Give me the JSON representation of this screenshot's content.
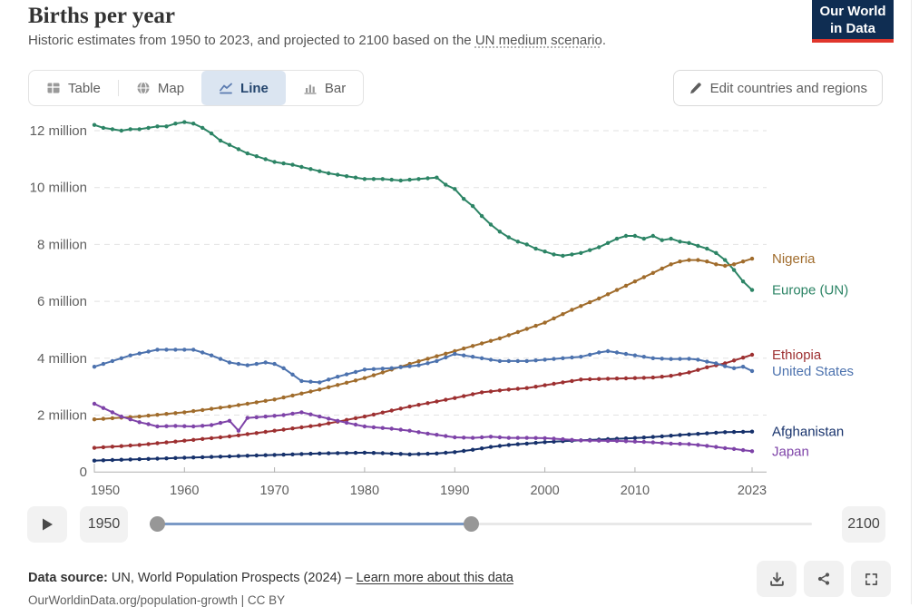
{
  "header": {
    "title": "Births per year",
    "subtitle_prefix": "Historic estimates from 1950 to 2023, and projected to 2100 based on the ",
    "subtitle_link": "UN medium scenario",
    "subtitle_suffix": ".",
    "logo_line1": "Our World",
    "logo_line2": "in Data",
    "logo_bg_color": "#0F2D52",
    "logo_stripe_color": "#E0362C"
  },
  "tabs": {
    "items": [
      {
        "label": "Table",
        "icon": "table-grid",
        "active": false
      },
      {
        "label": "Map",
        "icon": "globe",
        "active": false
      },
      {
        "label": "Line",
        "icon": "line-trend",
        "active": true
      },
      {
        "label": "Bar",
        "icon": "bar-columns",
        "active": false
      }
    ],
    "active_bg_color": "#dbe5f1"
  },
  "edit_button": {
    "label": "Edit countries and regions",
    "icon": "pencil"
  },
  "timeline": {
    "start_year_label": "1950",
    "end_year_label": "2100",
    "range_min": 1950,
    "range_max": 2100,
    "selected_start_year": 1950,
    "selected_end_year": 2023,
    "play_icon": "play-triangle",
    "active_track_color": "#7B9AC6"
  },
  "footer": {
    "data_source_label": "Data source:",
    "data_source_text": " UN, World Population Prospects (2024)",
    "separator": " – ",
    "learn_more_link": "Learn more about this data",
    "permalink": "OurWorldinData.org/population-growth | CC BY",
    "action_icons": [
      "download-tray",
      "share-nodes",
      "expand-corners"
    ]
  },
  "chart_data": {
    "type": "line",
    "title": "Births per year",
    "unit": "births (millions)",
    "grid": true,
    "legend_position": "right-end-labels",
    "y_axis": {
      "range": [
        0,
        12.6
      ],
      "ticks": [
        {
          "value": 0,
          "label": "0"
        },
        {
          "value": 2,
          "label": "2 million"
        },
        {
          "value": 4,
          "label": "4 million"
        },
        {
          "value": 6,
          "label": "6 million"
        },
        {
          "value": 8,
          "label": "8 million"
        },
        {
          "value": 10,
          "label": "10 million"
        },
        {
          "value": 12,
          "label": "12 million"
        }
      ]
    },
    "x_axis": {
      "range": [
        1950,
        2023
      ],
      "ticks": [
        {
          "value": 1950,
          "label": "1950"
        },
        {
          "value": 1960,
          "label": "1960"
        },
        {
          "value": 1970,
          "label": "1970"
        },
        {
          "value": 1980,
          "label": "1980"
        },
        {
          "value": 1990,
          "label": "1990"
        },
        {
          "value": 2000,
          "label": "2000"
        },
        {
          "value": 2010,
          "label": "2010"
        },
        {
          "value": 2023,
          "label": "2023"
        }
      ]
    },
    "series": [
      {
        "name": "Europe (UN)",
        "color": "#2C8465",
        "points": [
          [
            1950,
            12.2
          ],
          [
            1951,
            12.1
          ],
          [
            1952,
            12.05
          ],
          [
            1953,
            12.0
          ],
          [
            1954,
            12.05
          ],
          [
            1955,
            12.05
          ],
          [
            1956,
            12.1
          ],
          [
            1957,
            12.15
          ],
          [
            1958,
            12.15
          ],
          [
            1959,
            12.25
          ],
          [
            1960,
            12.3
          ],
          [
            1961,
            12.25
          ],
          [
            1962,
            12.1
          ],
          [
            1963,
            11.9
          ],
          [
            1964,
            11.65
          ],
          [
            1965,
            11.5
          ],
          [
            1966,
            11.35
          ],
          [
            1967,
            11.2
          ],
          [
            1968,
            11.1
          ],
          [
            1969,
            11.0
          ],
          [
            1970,
            10.9
          ],
          [
            1972,
            10.8
          ],
          [
            1974,
            10.65
          ],
          [
            1976,
            10.5
          ],
          [
            1978,
            10.4
          ],
          [
            1980,
            10.3
          ],
          [
            1982,
            10.3
          ],
          [
            1984,
            10.25
          ],
          [
            1986,
            10.3
          ],
          [
            1988,
            10.35
          ],
          [
            1989,
            10.1
          ],
          [
            1990,
            9.95
          ],
          [
            1991,
            9.6
          ],
          [
            1992,
            9.35
          ],
          [
            1993,
            9.0
          ],
          [
            1994,
            8.7
          ],
          [
            1995,
            8.45
          ],
          [
            1996,
            8.25
          ],
          [
            1997,
            8.1
          ],
          [
            1998,
            8.0
          ],
          [
            1999,
            7.85
          ],
          [
            2000,
            7.75
          ],
          [
            2001,
            7.65
          ],
          [
            2002,
            7.6
          ],
          [
            2003,
            7.65
          ],
          [
            2004,
            7.7
          ],
          [
            2005,
            7.8
          ],
          [
            2006,
            7.9
          ],
          [
            2007,
            8.05
          ],
          [
            2008,
            8.2
          ],
          [
            2009,
            8.3
          ],
          [
            2010,
            8.3
          ],
          [
            2011,
            8.2
          ],
          [
            2012,
            8.3
          ],
          [
            2013,
            8.15
          ],
          [
            2014,
            8.2
          ],
          [
            2015,
            8.1
          ],
          [
            2016,
            8.05
          ],
          [
            2017,
            7.95
          ],
          [
            2018,
            7.85
          ],
          [
            2019,
            7.7
          ],
          [
            2020,
            7.45
          ],
          [
            2021,
            7.1
          ],
          [
            2022,
            6.7
          ],
          [
            2023,
            6.4
          ]
        ]
      },
      {
        "name": "Nigeria",
        "color": "#A06C2C",
        "points": [
          [
            1950,
            1.85
          ],
          [
            1955,
            1.95
          ],
          [
            1960,
            2.1
          ],
          [
            1965,
            2.3
          ],
          [
            1970,
            2.55
          ],
          [
            1975,
            2.9
          ],
          [
            1980,
            3.3
          ],
          [
            1985,
            3.8
          ],
          [
            1990,
            4.25
          ],
          [
            1995,
            4.7
          ],
          [
            2000,
            5.25
          ],
          [
            2003,
            5.7
          ],
          [
            2006,
            6.1
          ],
          [
            2008,
            6.4
          ],
          [
            2010,
            6.7
          ],
          [
            2012,
            7.0
          ],
          [
            2014,
            7.3
          ],
          [
            2015,
            7.4
          ],
          [
            2016,
            7.45
          ],
          [
            2017,
            7.45
          ],
          [
            2018,
            7.4
          ],
          [
            2019,
            7.3
          ],
          [
            2020,
            7.25
          ],
          [
            2021,
            7.3
          ],
          [
            2022,
            7.4
          ],
          [
            2023,
            7.5
          ]
        ]
      },
      {
        "name": "Ethiopia",
        "color": "#9D3031",
        "points": [
          [
            1950,
            0.85
          ],
          [
            1955,
            0.95
          ],
          [
            1960,
            1.1
          ],
          [
            1965,
            1.25
          ],
          [
            1970,
            1.45
          ],
          [
            1975,
            1.65
          ],
          [
            1980,
            1.95
          ],
          [
            1985,
            2.3
          ],
          [
            1990,
            2.6
          ],
          [
            1993,
            2.8
          ],
          [
            1996,
            2.9
          ],
          [
            1998,
            2.95
          ],
          [
            2000,
            3.05
          ],
          [
            2002,
            3.15
          ],
          [
            2004,
            3.25
          ],
          [
            2007,
            3.28
          ],
          [
            2010,
            3.3
          ],
          [
            2012,
            3.32
          ],
          [
            2014,
            3.38
          ],
          [
            2016,
            3.5
          ],
          [
            2018,
            3.68
          ],
          [
            2020,
            3.82
          ],
          [
            2021,
            3.92
          ],
          [
            2022,
            4.02
          ],
          [
            2023,
            4.12
          ]
        ]
      },
      {
        "name": "United States",
        "color": "#4C72AE",
        "points": [
          [
            1950,
            3.7
          ],
          [
            1952,
            3.9
          ],
          [
            1954,
            4.1
          ],
          [
            1957,
            4.3
          ],
          [
            1959,
            4.3
          ],
          [
            1961,
            4.3
          ],
          [
            1963,
            4.1
          ],
          [
            1965,
            3.85
          ],
          [
            1967,
            3.75
          ],
          [
            1969,
            3.85
          ],
          [
            1970,
            3.8
          ],
          [
            1971,
            3.65
          ],
          [
            1973,
            3.2
          ],
          [
            1975,
            3.15
          ],
          [
            1977,
            3.35
          ],
          [
            1980,
            3.6
          ],
          [
            1983,
            3.65
          ],
          [
            1986,
            3.75
          ],
          [
            1988,
            3.9
          ],
          [
            1990,
            4.15
          ],
          [
            1992,
            4.05
          ],
          [
            1995,
            3.9
          ],
          [
            1998,
            3.9
          ],
          [
            2000,
            3.95
          ],
          [
            2002,
            4.0
          ],
          [
            2004,
            4.05
          ],
          [
            2006,
            4.2
          ],
          [
            2007,
            4.25
          ],
          [
            2009,
            4.15
          ],
          [
            2010,
            4.1
          ],
          [
            2012,
            4.0
          ],
          [
            2014,
            3.97
          ],
          [
            2016,
            3.98
          ],
          [
            2017,
            3.95
          ],
          [
            2018,
            3.88
          ],
          [
            2019,
            3.82
          ],
          [
            2020,
            3.72
          ],
          [
            2021,
            3.65
          ],
          [
            2022,
            3.7
          ],
          [
            2023,
            3.55
          ]
        ]
      },
      {
        "name": "Afghanistan",
        "color": "#16316B",
        "points": [
          [
            1950,
            0.4
          ],
          [
            1955,
            0.45
          ],
          [
            1960,
            0.5
          ],
          [
            1965,
            0.55
          ],
          [
            1970,
            0.6
          ],
          [
            1975,
            0.65
          ],
          [
            1980,
            0.68
          ],
          [
            1982,
            0.66
          ],
          [
            1985,
            0.62
          ],
          [
            1988,
            0.65
          ],
          [
            1990,
            0.7
          ],
          [
            1992,
            0.78
          ],
          [
            1994,
            0.88
          ],
          [
            1996,
            0.95
          ],
          [
            1998,
            1.0
          ],
          [
            2000,
            1.05
          ],
          [
            2003,
            1.1
          ],
          [
            2006,
            1.14
          ],
          [
            2009,
            1.18
          ],
          [
            2012,
            1.23
          ],
          [
            2015,
            1.3
          ],
          [
            2018,
            1.36
          ],
          [
            2020,
            1.4
          ],
          [
            2023,
            1.42
          ]
        ]
      },
      {
        "name": "Japan",
        "color": "#7E43A8",
        "points": [
          [
            1950,
            2.4
          ],
          [
            1951,
            2.25
          ],
          [
            1952,
            2.1
          ],
          [
            1953,
            1.95
          ],
          [
            1954,
            1.85
          ],
          [
            1955,
            1.75
          ],
          [
            1956,
            1.68
          ],
          [
            1957,
            1.6
          ],
          [
            1959,
            1.62
          ],
          [
            1961,
            1.6
          ],
          [
            1963,
            1.65
          ],
          [
            1965,
            1.8
          ],
          [
            1966,
            1.45
          ],
          [
            1967,
            1.9
          ],
          [
            1969,
            1.95
          ],
          [
            1971,
            2.0
          ],
          [
            1973,
            2.1
          ],
          [
            1975,
            1.95
          ],
          [
            1977,
            1.8
          ],
          [
            1980,
            1.6
          ],
          [
            1983,
            1.52
          ],
          [
            1985,
            1.45
          ],
          [
            1987,
            1.35
          ],
          [
            1990,
            1.22
          ],
          [
            1992,
            1.2
          ],
          [
            1994,
            1.24
          ],
          [
            1996,
            1.2
          ],
          [
            1998,
            1.2
          ],
          [
            2000,
            1.19
          ],
          [
            2002,
            1.15
          ],
          [
            2004,
            1.11
          ],
          [
            2006,
            1.1
          ],
          [
            2008,
            1.09
          ],
          [
            2010,
            1.07
          ],
          [
            2012,
            1.04
          ],
          [
            2014,
            1.0
          ],
          [
            2016,
            0.98
          ],
          [
            2018,
            0.92
          ],
          [
            2020,
            0.84
          ],
          [
            2021,
            0.81
          ],
          [
            2022,
            0.77
          ],
          [
            2023,
            0.73
          ]
        ]
      }
    ]
  }
}
